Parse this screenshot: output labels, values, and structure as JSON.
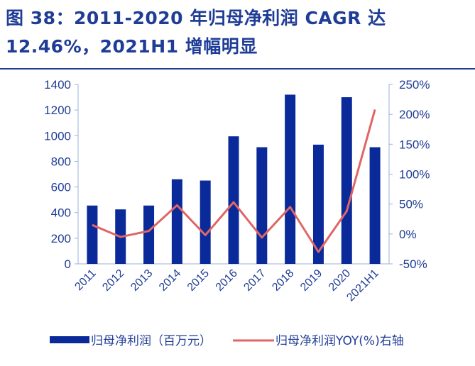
{
  "title": {
    "line1": "图 38：2011-2020 年归母净利润 CAGR 达",
    "line2": "12.46%，2021H1 增幅明显"
  },
  "colors": {
    "bar": "#0a2a9a",
    "line": "#e06666",
    "text": "#1f3c96",
    "axis": "#9bb0d8"
  },
  "chart_data": {
    "type": "bar",
    "categories": [
      "2011",
      "2012",
      "2013",
      "2014",
      "2015",
      "2016",
      "2017",
      "2018",
      "2019",
      "2020",
      "2021H1"
    ],
    "series": [
      {
        "name": "归母净利润（百万元）",
        "type": "bar",
        "axis": "left",
        "values": [
          455,
          425,
          455,
          660,
          650,
          995,
          910,
          1320,
          930,
          1300,
          910
        ]
      },
      {
        "name": "归母净利润YOY(%)右轴",
        "type": "line",
        "axis": "right",
        "values": [
          15,
          -5,
          5,
          48,
          -2,
          53,
          -6,
          45,
          -30,
          38,
          208
        ]
      }
    ],
    "ylim_left": [
      0,
      1400
    ],
    "yticks_left": [
      "0",
      "200",
      "400",
      "600",
      "800",
      "1000",
      "1200",
      "1400"
    ],
    "ylim_right": [
      -50,
      250
    ],
    "yticks_right": [
      "-50%",
      "0%",
      "50%",
      "100%",
      "150%",
      "200%",
      "250%"
    ],
    "legend_position": "bottom",
    "grid": false
  }
}
